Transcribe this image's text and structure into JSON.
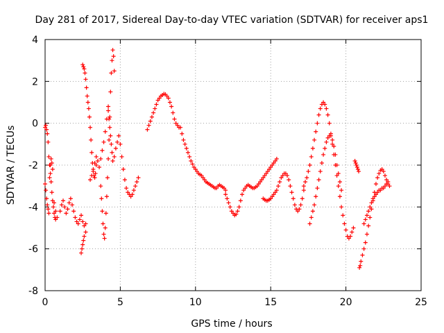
{
  "chart_data": {
    "type": "scatter",
    "title": "Day 281 of 2017, Sidereal Day-to-day VTEC variation (SDTVAR) for receiver aps1",
    "xlabel": "GPS time / hours",
    "ylabel": "SDTVAR / TECUs",
    "xlim": [
      0,
      25
    ],
    "ylim": [
      -8,
      4
    ],
    "xticks": [
      0,
      5,
      10,
      15,
      20,
      25
    ],
    "yticks": [
      -8,
      -6,
      -4,
      -2,
      0,
      2,
      4
    ],
    "grid": true,
    "marker": "plus",
    "color": "#ff0000",
    "series": [
      {
        "name": "aps1",
        "x": [
          0.0,
          0.05,
          0.1,
          0.15,
          0.2,
          0.25,
          0.3,
          0.35,
          0.4,
          0.45,
          0.5,
          0.55,
          0.6,
          0.65,
          0.7,
          0.0,
          0.05,
          0.1,
          0.15,
          0.2,
          0.25,
          0.3,
          0.35,
          0.4,
          0.45,
          0.5,
          0.6,
          0.7,
          0.8,
          1.0,
          1.1,
          1.2,
          1.3,
          1.4,
          1.5,
          1.6,
          1.7,
          1.8,
          1.9,
          2.0,
          2.1,
          2.2,
          2.3,
          2.4,
          2.5,
          2.6,
          2.7,
          2.4,
          2.45,
          2.5,
          2.55,
          2.6,
          2.7,
          2.5,
          2.55,
          2.6,
          2.65,
          2.7,
          2.75,
          2.8,
          2.85,
          2.9,
          2.95,
          3.0,
          3.05,
          3.1,
          3.15,
          3.2,
          3.25,
          3.3,
          3.35,
          3.4,
          3.0,
          3.1,
          3.2,
          3.3,
          3.4,
          3.5,
          3.6,
          3.7,
          3.8,
          3.9,
          4.0,
          4.1,
          4.2,
          3.7,
          3.75,
          3.8,
          3.85,
          3.9,
          3.95,
          4.0,
          4.05,
          4.1,
          4.15,
          4.2,
          4.25,
          4.3,
          4.35,
          4.4,
          4.45,
          4.5,
          4.55,
          4.6,
          4.2,
          4.25,
          4.3,
          4.35,
          4.4,
          4.45,
          4.5,
          4.6,
          4.7,
          4.8,
          4.9,
          5.0,
          5.1,
          5.2,
          5.3,
          5.4,
          5.5,
          5.6,
          5.7,
          5.8,
          5.9,
          6.0,
          6.1,
          6.2,
          6.8,
          6.9,
          7.0,
          7.1,
          7.2,
          7.3,
          7.4,
          7.5,
          7.6,
          7.7,
          7.8,
          7.9,
          8.0,
          8.1,
          8.2,
          8.3,
          8.4,
          8.5,
          8.6,
          8.7,
          8.8,
          8.9,
          9.0,
          9.1,
          9.2,
          9.3,
          9.4,
          9.5,
          9.6,
          9.7,
          9.8,
          9.9,
          10.0,
          10.1,
          10.2,
          10.3,
          10.4,
          10.5,
          10.6,
          10.7,
          10.8,
          10.9,
          11.0,
          11.1,
          11.2,
          11.3,
          11.4,
          11.5,
          11.6,
          11.7,
          11.8,
          11.9,
          12.0,
          12.0,
          12.1,
          12.2,
          12.3,
          12.4,
          12.5,
          12.6,
          12.7,
          12.8,
          12.9,
          13.0,
          13.1,
          13.2,
          13.3,
          13.4,
          13.5,
          13.6,
          13.7,
          13.8,
          13.9,
          14.0,
          14.1,
          14.2,
          14.3,
          14.4,
          14.5,
          14.6,
          14.7,
          14.8,
          14.9,
          15.0,
          15.1,
          15.2,
          15.3,
          15.4,
          14.5,
          14.6,
          14.7,
          14.8,
          14.9,
          15.0,
          15.1,
          15.2,
          15.3,
          15.4,
          15.5,
          15.6,
          15.7,
          15.8,
          15.9,
          16.0,
          16.1,
          16.2,
          16.3,
          16.4,
          16.5,
          16.6,
          16.7,
          16.8,
          16.9,
          17.0,
          17.1,
          17.2,
          17.2,
          17.3,
          17.4,
          17.5,
          17.6,
          17.7,
          17.8,
          17.9,
          18.0,
          18.1,
          18.2,
          18.3,
          18.4,
          18.5,
          18.6,
          18.7,
          18.8,
          18.9,
          19.0,
          19.1,
          19.2,
          19.3,
          19.4,
          19.5,
          19.6,
          19.7,
          19.8,
          19.9,
          20.0,
          20.1,
          20.2,
          20.3,
          20.4,
          20.5,
          17.6,
          17.7,
          17.8,
          17.9,
          18.0,
          18.1,
          18.2,
          18.3,
          18.4,
          18.5,
          18.6,
          18.7,
          18.8,
          18.9,
          19.0,
          19.1,
          19.2,
          19.3,
          19.4,
          19.5,
          19.6,
          19.7,
          20.6,
          20.65,
          20.7,
          20.75,
          20.8,
          20.85,
          20.9,
          20.95,
          21.0,
          21.1,
          21.2,
          21.3,
          21.4,
          21.5,
          21.6,
          21.7,
          21.8,
          21.9,
          22.0,
          22.1,
          22.2,
          22.3,
          22.4,
          22.5,
          22.6,
          22.7,
          22.8,
          22.9,
          21.2,
          21.3,
          21.4,
          21.5,
          21.6,
          21.7,
          21.8,
          21.9,
          22.0,
          22.1,
          22.2,
          22.3,
          22.4,
          22.5,
          22.6,
          22.7,
          22.8
        ],
        "y": [
          -0.2,
          -0.1,
          -0.3,
          -0.5,
          -0.9,
          -1.6,
          -2.0,
          -2.4,
          -2.8,
          -3.3,
          -3.7,
          -4.0,
          -4.3,
          -4.5,
          -4.6,
          -2.9,
          -3.2,
          -3.6,
          -3.9,
          -4.1,
          -4.3,
          -2.6,
          -2.0,
          -1.7,
          -1.9,
          -2.2,
          -3.8,
          -4.2,
          -4.5,
          -4.2,
          -3.9,
          -3.7,
          -4.0,
          -4.3,
          -4.1,
          -3.8,
          -3.6,
          -3.9,
          -4.2,
          -4.5,
          -4.7,
          -4.8,
          -4.6,
          -4.4,
          -4.7,
          -4.9,
          -4.8,
          -6.2,
          -6.0,
          -5.8,
          -5.6,
          -5.4,
          -5.2,
          2.8,
          2.7,
          2.6,
          2.4,
          2.1,
          1.7,
          1.3,
          1.0,
          0.7,
          0.3,
          -0.2,
          -0.8,
          -1.4,
          -1.9,
          -2.3,
          -2.5,
          -2.6,
          -2.4,
          -2.0,
          -2.7,
          -2.5,
          -2.2,
          -1.9,
          -1.6,
          -1.8,
          -2.1,
          -1.7,
          -1.3,
          -0.9,
          -0.4,
          0.2,
          0.8,
          -3.0,
          -3.6,
          -4.2,
          -4.8,
          -5.3,
          -5.5,
          -5.0,
          -4.3,
          -3.5,
          -2.6,
          -1.7,
          -0.8,
          0.3,
          1.5,
          2.4,
          3.0,
          3.5,
          3.2,
          2.5,
          0.6,
          0.2,
          -0.2,
          -0.6,
          -1.0,
          -1.4,
          -1.8,
          -1.6,
          -1.2,
          -0.9,
          -0.6,
          -1.0,
          -1.6,
          -2.2,
          -2.7,
          -3.1,
          -3.3,
          -3.4,
          -3.5,
          -3.4,
          -3.2,
          -3.0,
          -2.8,
          -2.6,
          -0.3,
          -0.1,
          0.1,
          0.3,
          0.5,
          0.7,
          0.9,
          1.1,
          1.2,
          1.3,
          1.35,
          1.4,
          1.38,
          1.3,
          1.2,
          1.0,
          0.8,
          0.5,
          0.2,
          0.0,
          -0.1,
          -0.2,
          -0.2,
          -0.5,
          -0.8,
          -1.0,
          -1.2,
          -1.4,
          -1.6,
          -1.8,
          -1.95,
          -2.1,
          -2.2,
          -2.3,
          -2.4,
          -2.45,
          -2.5,
          -2.6,
          -2.7,
          -2.8,
          -2.85,
          -2.9,
          -2.95,
          -3.0,
          -3.05,
          -3.1,
          -3.1,
          -3.0,
          -2.95,
          -3.0,
          -3.05,
          -3.1,
          -3.2,
          -3.4,
          -3.6,
          -3.8,
          -4.0,
          -4.2,
          -4.3,
          -4.4,
          -4.35,
          -4.2,
          -4.0,
          -3.7,
          -3.4,
          -3.2,
          -3.1,
          -3.0,
          -2.95,
          -3.0,
          -3.05,
          -3.1,
          -3.1,
          -3.05,
          -3.0,
          -2.9,
          -2.8,
          -2.7,
          -2.6,
          -2.5,
          -2.4,
          -2.3,
          -2.2,
          -2.1,
          -2.0,
          -1.9,
          -1.8,
          -1.7,
          -3.6,
          -3.65,
          -3.7,
          -3.7,
          -3.65,
          -3.6,
          -3.5,
          -3.4,
          -3.3,
          -3.2,
          -3.0,
          -2.8,
          -2.6,
          -2.5,
          -2.4,
          -2.4,
          -2.5,
          -2.7,
          -3.0,
          -3.3,
          -3.6,
          -3.9,
          -4.1,
          -4.2,
          -4.1,
          -3.9,
          -3.6,
          -3.2,
          -3.0,
          -2.8,
          -2.6,
          -2.3,
          -2.0,
          -1.6,
          -1.2,
          -0.8,
          -0.4,
          0.0,
          0.4,
          0.7,
          0.9,
          1.0,
          0.9,
          0.7,
          0.4,
          0.0,
          -0.5,
          -1.0,
          -1.5,
          -2.0,
          -2.5,
          -3.0,
          -3.5,
          -4.0,
          -4.4,
          -4.8,
          -5.1,
          -5.4,
          -5.5,
          -5.4,
          -5.2,
          -5.0,
          -4.8,
          -4.5,
          -4.2,
          -3.9,
          -3.5,
          -3.1,
          -2.7,
          -2.3,
          -1.9,
          -1.5,
          -1.2,
          -0.9,
          -0.7,
          -0.6,
          -0.6,
          -0.8,
          -1.1,
          -1.5,
          -2.0,
          -2.4,
          -2.8,
          -3.2,
          -1.8,
          -1.9,
          -2.0,
          -2.1,
          -2.2,
          -2.3,
          -6.9,
          -6.8,
          -6.6,
          -6.3,
          -6.0,
          -5.7,
          -5.3,
          -4.9,
          -4.5,
          -4.1,
          -3.7,
          -3.3,
          -2.9,
          -2.6,
          -2.4,
          -2.25,
          -2.2,
          -2.3,
          -2.5,
          -2.7,
          -2.9,
          -3.0,
          -4.8,
          -4.6,
          -4.4,
          -4.2,
          -4.0,
          -3.8,
          -3.6,
          -3.5,
          -3.4,
          -3.3,
          -3.2,
          -3.2,
          -3.1,
          -3.1,
          -3.0,
          -2.9,
          -2.8
        ]
      }
    ]
  }
}
